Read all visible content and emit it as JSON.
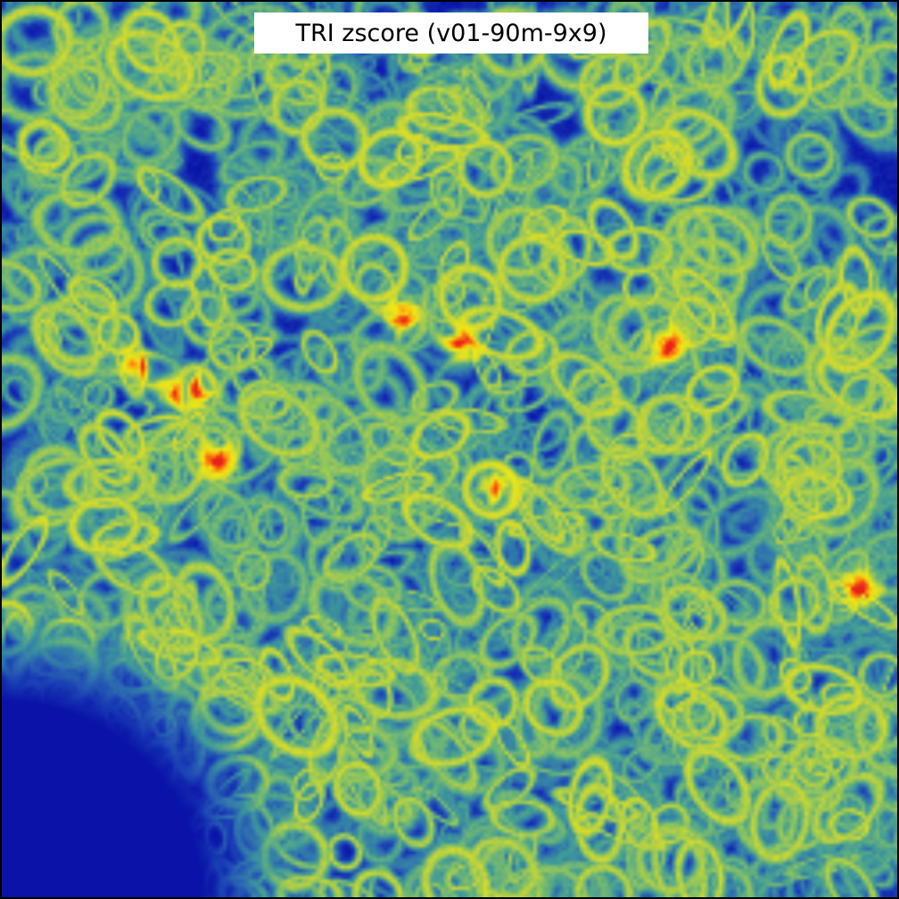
{
  "title": "TRI zscore (v01-90m-9x9)",
  "image": {
    "colormap": [
      "#0a12a8",
      "#1a3fb5",
      "#2f6fb0",
      "#3f9a9a",
      "#7fbf6a",
      "#d8dc2a",
      "#f2ec12",
      "#ff8a10",
      "#e8201a"
    ],
    "background_color": "#0a12a8",
    "frame_color": "#000000"
  }
}
